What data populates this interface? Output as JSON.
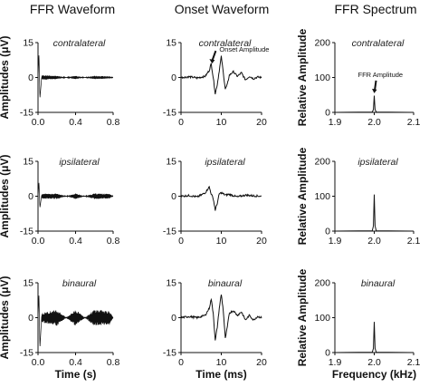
{
  "figure": {
    "columns": [
      "FFR Waveform",
      "Onset Waveform",
      "FFR Spectrum"
    ],
    "conditions": [
      "contralateral",
      "ipsilateral",
      "binaural"
    ],
    "annotations": {
      "onset": "Onset Amplitude",
      "ffr": "FFR Amplitude"
    }
  },
  "chart_data": [
    {
      "type": "line",
      "column": "FFR Waveform",
      "condition": "contralateral",
      "title": "contralateral",
      "xlabel": "",
      "ylabel": "Amplitudes (μV)",
      "xlim": [
        0,
        0.8
      ],
      "ylim": [
        -15,
        15
      ],
      "xticks": [
        "0.0",
        "0.4",
        "0.8"
      ],
      "yticks": [
        "15",
        "0",
        "-15"
      ],
      "series": [
        {
          "x": [
            0.0,
            0.01,
            0.02,
            0.04,
            0.2,
            0.4,
            0.6,
            0.76,
            0.8
          ],
          "y": [
            0,
            10,
            -9,
            1,
            0.7,
            -0.7,
            0.7,
            0.5,
            0
          ]
        }
      ]
    },
    {
      "type": "line",
      "column": "Onset Waveform",
      "condition": "contralateral",
      "title": "contralateral",
      "xlabel": "",
      "ylabel": "",
      "xlim": [
        0,
        20
      ],
      "ylim": [
        -15,
        15
      ],
      "xticks": [
        "0",
        "10",
        "20"
      ],
      "yticks": [
        "15",
        "0",
        "-15"
      ],
      "series": [
        {
          "x": [
            0,
            2,
            4,
            6,
            7,
            7.5,
            8,
            8.5,
            9,
            9.5,
            10,
            10.5,
            11,
            11.5,
            12,
            13,
            14,
            15,
            16,
            17,
            18,
            19,
            20
          ],
          "y": [
            0,
            0.3,
            -0.2,
            0.5,
            3,
            6,
            0,
            -7,
            -3,
            3,
            9,
            2,
            -5,
            -3,
            1,
            2.5,
            0.5,
            2,
            -1,
            0.5,
            -0.5,
            0.2,
            0
          ]
        }
      ]
    },
    {
      "type": "line",
      "column": "FFR Spectrum",
      "condition": "contralateral",
      "title": "contralateral",
      "xlabel": "",
      "ylabel": "Relative Amplitude",
      "xlim": [
        1.9,
        2.1
      ],
      "ylim": [
        0,
        200
      ],
      "xticks": [
        "1.9",
        "2.0",
        "2.1"
      ],
      "yticks": [
        "200",
        "100",
        "0"
      ],
      "series": [
        {
          "x": [
            1.9,
            1.995,
            1.998,
            2.0,
            2.002,
            2.005,
            2.1
          ],
          "y": [
            0,
            1,
            8,
            48,
            8,
            1,
            0
          ]
        }
      ]
    },
    {
      "type": "line",
      "column": "FFR Waveform",
      "condition": "ipsilateral",
      "title": "ipsilateral",
      "xlabel": "",
      "ylabel": "Amplitudes (μV)",
      "xlim": [
        0,
        0.8
      ],
      "ylim": [
        -15,
        15
      ],
      "xticks": [
        "0.0",
        "0.4",
        "0.8"
      ],
      "yticks": [
        "15",
        "0",
        "-15"
      ],
      "series": [
        {
          "x": [
            0.0,
            0.01,
            0.02,
            0.04,
            0.2,
            0.4,
            0.6,
            0.76,
            0.8
          ],
          "y": [
            0,
            6,
            -5,
            1,
            1.2,
            -1.2,
            1.2,
            1.0,
            0
          ]
        }
      ]
    },
    {
      "type": "line",
      "column": "Onset Waveform",
      "condition": "ipsilateral",
      "title": "ipsilateral",
      "xlabel": "",
      "ylabel": "",
      "xlim": [
        0,
        20
      ],
      "ylim": [
        -15,
        15
      ],
      "xticks": [
        "0",
        "10",
        "20"
      ],
      "yticks": [
        "15",
        "0",
        "-15"
      ],
      "series": [
        {
          "x": [
            0,
            2,
            4,
            5,
            6,
            7,
            7.5,
            8,
            8.5,
            9,
            9.5,
            10,
            11,
            12,
            14,
            16,
            18,
            20
          ],
          "y": [
            0,
            0.3,
            -0.3,
            0.5,
            1.5,
            4,
            1,
            -1,
            -6,
            -3,
            1,
            1.5,
            0.5,
            0.8,
            -0.3,
            0.5,
            0.2,
            0
          ]
        }
      ]
    },
    {
      "type": "line",
      "column": "FFR Spectrum",
      "condition": "ipsilateral",
      "title": "ipsilateral",
      "xlabel": "",
      "ylabel": "Relative Amplitude",
      "xlim": [
        1.9,
        2.1
      ],
      "ylim": [
        0,
        200
      ],
      "xticks": [
        "1.9",
        "2.0",
        "2.1"
      ],
      "yticks": [
        "200",
        "100",
        "0"
      ],
      "series": [
        {
          "x": [
            1.9,
            1.995,
            1.998,
            2.0,
            2.002,
            2.005,
            2.1
          ],
          "y": [
            0,
            1,
            15,
            105,
            15,
            1,
            0
          ]
        }
      ]
    },
    {
      "type": "line",
      "column": "FFR Waveform",
      "condition": "binaural",
      "title": "binaural",
      "xlabel": "Time (s)",
      "ylabel": "Amplitudes (μV)",
      "xlim": [
        0,
        0.8
      ],
      "ylim": [
        -15,
        15
      ],
      "xticks": [
        "0.0",
        "0.4",
        "0.8"
      ],
      "yticks": [
        "15",
        "0",
        "-15"
      ],
      "series": [
        {
          "x": [
            0.0,
            0.01,
            0.02,
            0.04,
            0.2,
            0.4,
            0.6,
            0.76,
            0.8
          ],
          "y": [
            0,
            10,
            -13,
            2,
            3.5,
            -3.5,
            3.5,
            3.0,
            0
          ]
        }
      ]
    },
    {
      "type": "line",
      "column": "Onset Waveform",
      "condition": "binaural",
      "title": "binaural",
      "xlabel": "Time (ms)",
      "ylabel": "",
      "xlim": [
        0,
        20
      ],
      "ylim": [
        -15,
        15
      ],
      "xticks": [
        "0",
        "10",
        "20"
      ],
      "yticks": [
        "15",
        "0",
        "-15"
      ],
      "series": [
        {
          "x": [
            0,
            2,
            4,
            6,
            7,
            7.5,
            8,
            8.5,
            9,
            9.5,
            10,
            10.5,
            11,
            11.5,
            12,
            13,
            14,
            15,
            16,
            17,
            18,
            19,
            20
          ],
          "y": [
            0,
            0.5,
            0,
            1,
            4,
            8,
            2,
            -10,
            -4,
            4,
            10,
            3,
            -9,
            -4,
            2,
            3,
            1,
            2.5,
            -1,
            1,
            -1,
            0.5,
            0
          ]
        }
      ]
    },
    {
      "type": "line",
      "column": "FFR Spectrum",
      "condition": "binaural",
      "title": "binaural",
      "xlabel": "Frequency (kHz)",
      "ylabel": "Relative Amplitude",
      "xlim": [
        1.9,
        2.1
      ],
      "ylim": [
        0,
        200
      ],
      "xticks": [
        "1.9",
        "2.0",
        "2.1"
      ],
      "yticks": [
        "200",
        "100",
        "0"
      ],
      "series": [
        {
          "x": [
            1.9,
            1.995,
            1.998,
            2.0,
            2.002,
            2.005,
            2.1
          ],
          "y": [
            0,
            1,
            12,
            88,
            12,
            1,
            0
          ]
        }
      ]
    }
  ]
}
